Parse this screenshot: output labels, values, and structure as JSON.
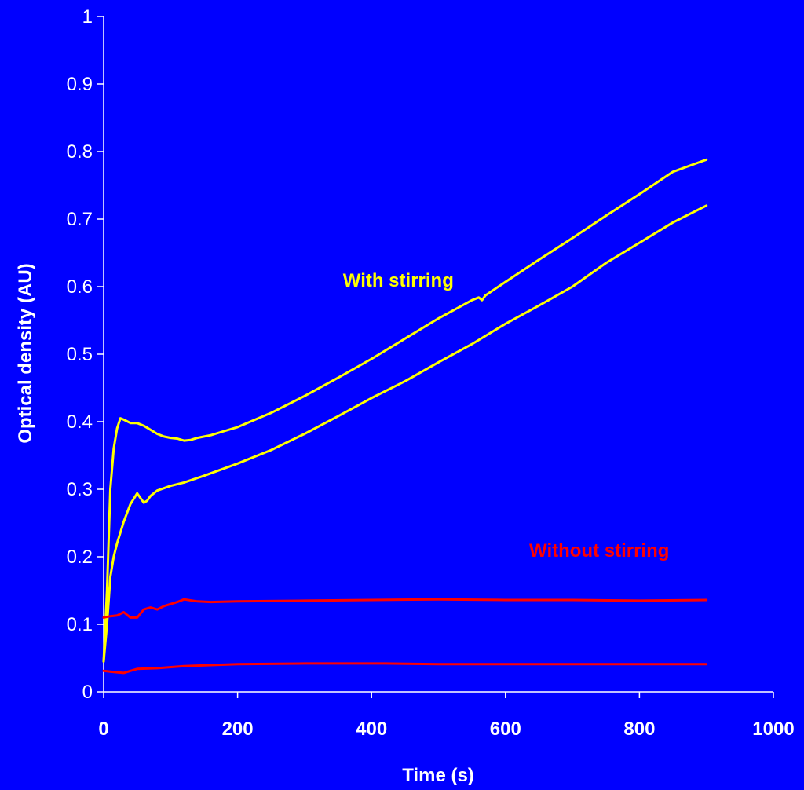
{
  "chart_data": {
    "type": "line",
    "title": "",
    "xlabel": "Time (s)",
    "ylabel": "Optical density (AU)",
    "xlim": [
      0,
      1000
    ],
    "ylim": [
      0,
      1
    ],
    "xticks": [
      "0",
      "200",
      "400",
      "600",
      "800",
      "1000"
    ],
    "yticks": [
      "0",
      "0.1",
      "0.2",
      "0.3",
      "0.4",
      "0.5",
      "0.6",
      "0.7",
      "0.8",
      "0.9",
      "1"
    ],
    "grid": false,
    "legend": "none",
    "annotations": [
      {
        "text": "With stirring",
        "color": "#ffff00",
        "x": 440,
        "y": 0.6
      },
      {
        "text": "Without stirring",
        "color": "#ff0000",
        "x": 740,
        "y": 0.2
      }
    ],
    "series": [
      {
        "color": "#ffff00",
        "points": [
          [
            0,
            0.045
          ],
          [
            5,
            0.15
          ],
          [
            10,
            0.3
          ],
          [
            15,
            0.36
          ],
          [
            20,
            0.39
          ],
          [
            25,
            0.405
          ],
          [
            30,
            0.403
          ],
          [
            40,
            0.398
          ],
          [
            50,
            0.398
          ],
          [
            60,
            0.394
          ],
          [
            70,
            0.388
          ],
          [
            80,
            0.382
          ],
          [
            90,
            0.378
          ],
          [
            100,
            0.376
          ],
          [
            110,
            0.375
          ],
          [
            120,
            0.372
          ],
          [
            130,
            0.373
          ],
          [
            140,
            0.376
          ],
          [
            160,
            0.38
          ],
          [
            180,
            0.386
          ],
          [
            200,
            0.392
          ],
          [
            250,
            0.413
          ],
          [
            300,
            0.438
          ],
          [
            350,
            0.465
          ],
          [
            400,
            0.493
          ],
          [
            450,
            0.523
          ],
          [
            500,
            0.553
          ],
          [
            550,
            0.58
          ],
          [
            560,
            0.584
          ],
          [
            565,
            0.58
          ],
          [
            570,
            0.587
          ],
          [
            600,
            0.607
          ],
          [
            650,
            0.64
          ],
          [
            700,
            0.672
          ],
          [
            750,
            0.705
          ],
          [
            800,
            0.737
          ],
          [
            850,
            0.77
          ],
          [
            900,
            0.788
          ]
        ]
      },
      {
        "color": "#ffff00",
        "points": [
          [
            0,
            0.045
          ],
          [
            5,
            0.1
          ],
          [
            10,
            0.17
          ],
          [
            15,
            0.2
          ],
          [
            20,
            0.22
          ],
          [
            30,
            0.252
          ],
          [
            40,
            0.278
          ],
          [
            50,
            0.294
          ],
          [
            55,
            0.287
          ],
          [
            60,
            0.28
          ],
          [
            65,
            0.283
          ],
          [
            70,
            0.29
          ],
          [
            80,
            0.298
          ],
          [
            100,
            0.305
          ],
          [
            120,
            0.31
          ],
          [
            150,
            0.32
          ],
          [
            200,
            0.338
          ],
          [
            250,
            0.358
          ],
          [
            300,
            0.382
          ],
          [
            350,
            0.408
          ],
          [
            400,
            0.435
          ],
          [
            450,
            0.46
          ],
          [
            500,
            0.488
          ],
          [
            550,
            0.515
          ],
          [
            600,
            0.545
          ],
          [
            650,
            0.572
          ],
          [
            700,
            0.6
          ],
          [
            750,
            0.635
          ],
          [
            800,
            0.665
          ],
          [
            850,
            0.695
          ],
          [
            900,
            0.72
          ]
        ]
      },
      {
        "color": "#ff0000",
        "points": [
          [
            0,
            0.11
          ],
          [
            10,
            0.112
          ],
          [
            20,
            0.113
          ],
          [
            30,
            0.118
          ],
          [
            40,
            0.11
          ],
          [
            50,
            0.11
          ],
          [
            60,
            0.122
          ],
          [
            70,
            0.125
          ],
          [
            80,
            0.122
          ],
          [
            90,
            0.127
          ],
          [
            100,
            0.13
          ],
          [
            110,
            0.133
          ],
          [
            120,
            0.137
          ],
          [
            140,
            0.134
          ],
          [
            160,
            0.133
          ],
          [
            200,
            0.134
          ],
          [
            300,
            0.135
          ],
          [
            400,
            0.136
          ],
          [
            500,
            0.137
          ],
          [
            600,
            0.136
          ],
          [
            700,
            0.136
          ],
          [
            800,
            0.135
          ],
          [
            900,
            0.136
          ]
        ]
      },
      {
        "color": "#ff0000",
        "points": [
          [
            0,
            0.031
          ],
          [
            10,
            0.03
          ],
          [
            20,
            0.029
          ],
          [
            30,
            0.028
          ],
          [
            40,
            0.031
          ],
          [
            50,
            0.034
          ],
          [
            80,
            0.035
          ],
          [
            120,
            0.038
          ],
          [
            200,
            0.041
          ],
          [
            300,
            0.042
          ],
          [
            420,
            0.042
          ],
          [
            500,
            0.041
          ],
          [
            600,
            0.041
          ],
          [
            700,
            0.041
          ],
          [
            800,
            0.041
          ],
          [
            900,
            0.041
          ]
        ]
      }
    ]
  }
}
